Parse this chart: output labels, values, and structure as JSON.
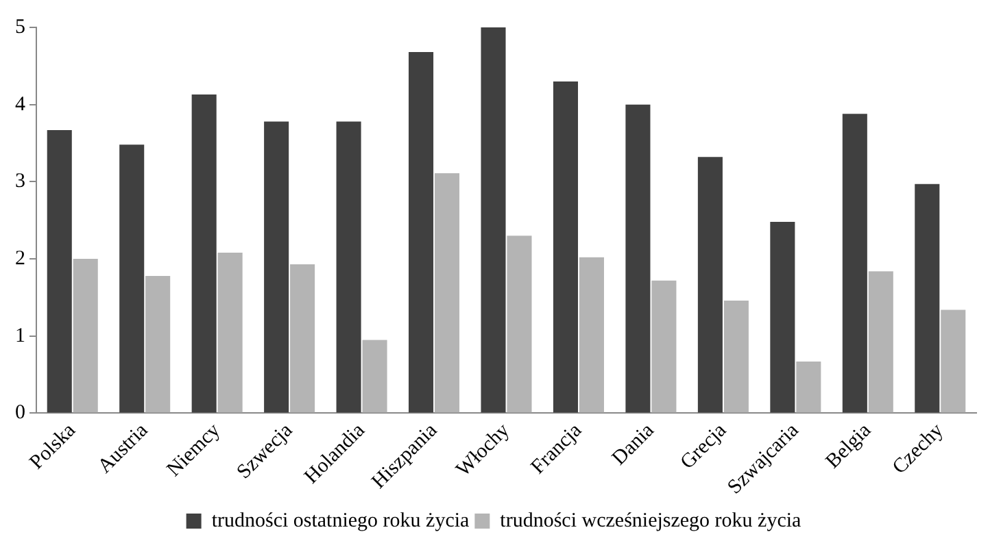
{
  "chart_data": {
    "type": "bar",
    "categories": [
      "Polska",
      "Austria",
      "Niemcy",
      "Szwecja",
      "Holandia",
      "Hiszpania",
      "Włochy",
      "Francja",
      "Dania",
      "Grecja",
      "Szwajcaria",
      "Belgia",
      "Czechy"
    ],
    "series": [
      {
        "name": "trudności ostatniego roku życia",
        "color": "#404040",
        "values": [
          3.67,
          3.48,
          4.13,
          3.78,
          3.78,
          4.68,
          5.0,
          4.3,
          4.0,
          3.32,
          2.48,
          3.88,
          2.97
        ]
      },
      {
        "name": "trudności wcześniejszego roku życia",
        "color": "#b4b4b4",
        "values": [
          2.0,
          1.78,
          2.08,
          1.93,
          0.95,
          3.11,
          2.3,
          2.02,
          1.72,
          1.46,
          0.67,
          1.84,
          1.34
        ]
      }
    ],
    "ylim": [
      0,
      5
    ],
    "yticks": [
      0,
      1,
      2,
      3,
      4,
      5
    ],
    "grid": false,
    "legend": "bottom"
  }
}
